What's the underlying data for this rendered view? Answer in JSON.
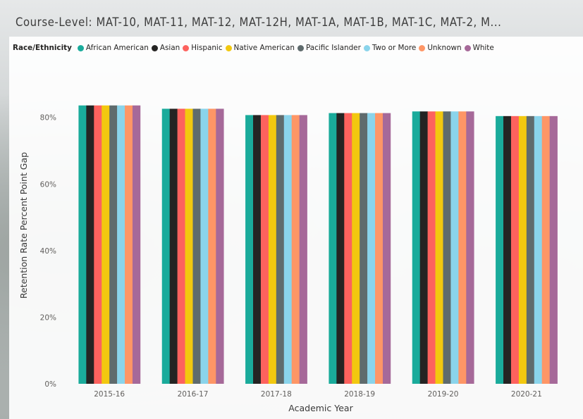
{
  "title": "Course-Level: MAT-10, MAT-11, MAT-12, MAT-12H, MAT-1A, MAT-1B, MAT-1C, MAT-2, M...",
  "legend": {
    "title": "Race/Ethnicity",
    "items": [
      {
        "label": "African American",
        "color": "#1aab9b"
      },
      {
        "label": "Asian",
        "color": "#252423"
      },
      {
        "label": "Hispanic",
        "color": "#fd625e"
      },
      {
        "label": "Native American",
        "color": "#f2c80f"
      },
      {
        "label": "Pacific Islander",
        "color": "#5f6b6d"
      },
      {
        "label": "Two or More",
        "color": "#8ad4eb"
      },
      {
        "label": "Unknown",
        "color": "#fe9666"
      },
      {
        "label": "White",
        "color": "#a66999"
      }
    ]
  },
  "chart_data": {
    "type": "bar",
    "title": "Course-Level: MAT-10, MAT-11, MAT-12, MAT-12H, MAT-1A, MAT-1B, MAT-1C, MAT-2, M...",
    "xlabel": "Academic Year",
    "ylabel": "Retention Rate Percent Point Gap",
    "categories": [
      "2015-16",
      "2016-17",
      "2017-18",
      "2018-19",
      "2019-20",
      "2020-21"
    ],
    "ylim": [
      0,
      92
    ],
    "yticks": [
      0,
      20,
      40,
      60,
      80
    ],
    "ytick_labels": [
      "0%",
      "20%",
      "40%",
      "60%",
      "80%"
    ],
    "grid": false,
    "legend_position": "top-left",
    "series": [
      {
        "name": "African American",
        "color": "#1aab9b",
        "values": [
          83.6,
          82.6,
          80.7,
          81.3,
          81.8,
          80.4
        ]
      },
      {
        "name": "Asian",
        "color": "#252423",
        "values": [
          83.6,
          82.6,
          80.7,
          81.3,
          81.8,
          80.4
        ]
      },
      {
        "name": "Hispanic",
        "color": "#fd625e",
        "values": [
          83.6,
          82.6,
          80.7,
          81.3,
          81.8,
          80.4
        ]
      },
      {
        "name": "Native American",
        "color": "#f2c80f",
        "values": [
          83.6,
          82.6,
          80.7,
          81.3,
          81.8,
          80.4
        ]
      },
      {
        "name": "Pacific Islander",
        "color": "#5f6b6d",
        "values": [
          83.6,
          82.6,
          80.7,
          81.3,
          81.8,
          80.4
        ]
      },
      {
        "name": "Two or More",
        "color": "#8ad4eb",
        "values": [
          83.6,
          82.6,
          80.7,
          81.3,
          81.8,
          80.4
        ]
      },
      {
        "name": "Unknown",
        "color": "#fe9666",
        "values": [
          83.6,
          82.6,
          80.7,
          81.3,
          81.8,
          80.4
        ]
      },
      {
        "name": "White",
        "color": "#a66999",
        "values": [
          83.6,
          82.6,
          80.7,
          81.3,
          81.8,
          80.4
        ]
      }
    ]
  }
}
